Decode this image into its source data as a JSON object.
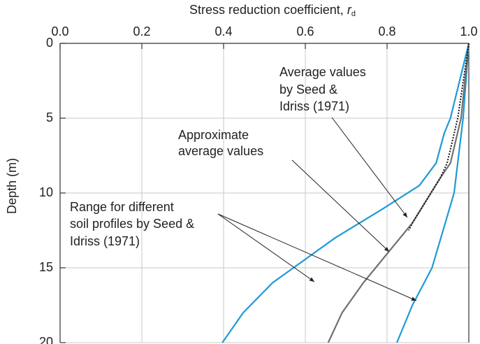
{
  "chart_data": {
    "type": "line",
    "xlabel": "Stress reduction coefficient,",
    "xlabel_symbol": "r",
    "xlabel_subscript": "d",
    "ylabel": "Depth (m)",
    "xlim": [
      0,
      1
    ],
    "xticks": [
      {
        "value": 0,
        "label": "0.0"
      },
      0.2,
      0.4,
      0.6,
      0.8,
      {
        "value": 1,
        "label": "1.0"
      }
    ],
    "ylim": [
      0,
      20
    ],
    "yticks": [
      0,
      5,
      10,
      15,
      20
    ],
    "y_inverted": true,
    "grid": true,
    "series": [
      {
        "color": "#1e9ad6",
        "depth": [
          0,
          5,
          10,
          15,
          17.5,
          20
        ],
        "values": [
          1.0,
          0.986,
          0.964,
          0.91,
          0.862,
          0.824
        ]
      },
      {
        "color": "#1e9ad6",
        "depth": [
          0,
          3,
          5,
          6,
          8,
          9.5,
          11,
          13,
          15,
          16,
          18,
          20
        ],
        "values": [
          1.0,
          0.973,
          0.955,
          0.94,
          0.92,
          0.879,
          0.793,
          0.673,
          0.571,
          0.52,
          0.448,
          0.397
        ]
      },
      {
        "color": "#707070",
        "depth": [
          0,
          5,
          8,
          9,
          12,
          14,
          16,
          18,
          20
        ],
        "values": [
          1.0,
          0.981,
          0.955,
          0.93,
          0.862,
          0.802,
          0.742,
          0.69,
          0.656
        ]
      },
      {
        "color": "#111111",
        "style": "dotted",
        "depth": [
          0,
          5,
          8,
          9,
          12,
          12.5
        ],
        "values": [
          1.0,
          0.973,
          0.947,
          0.93,
          0.862,
          0.853
        ]
      }
    ],
    "annotations": [
      {
        "lines": [
          "Average values",
          "by Seed &",
          "Idriss (1971)"
        ]
      },
      {
        "lines": [
          "Approximate",
          "average values"
        ]
      },
      {
        "lines": [
          "Range for different",
          "soil profiles by Seed &",
          "Idriss (1971)"
        ]
      }
    ]
  }
}
